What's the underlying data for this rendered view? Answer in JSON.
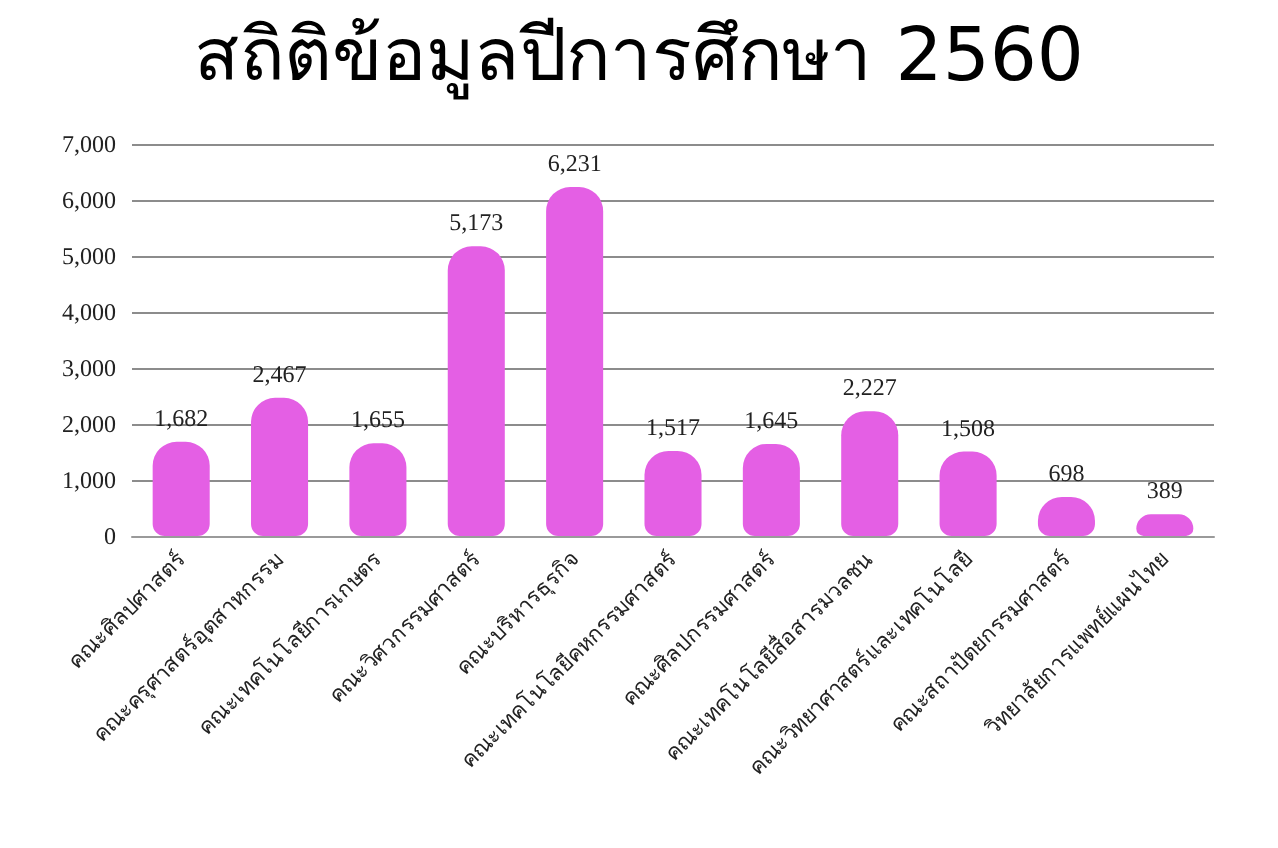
{
  "chart_data": {
    "type": "bar",
    "title": "สถิติข้อมูลปีการศึกษา 2560",
    "categories": [
      "คณะศิลปศาสตร์",
      "คณะครุศาสตร์อุตสาหกรรม",
      "คณะเทคโนโลยีการเกษตร",
      "คณะวิศวกรรมศาสตร์",
      "คณะบริหารธุรกิจ",
      "คณะเทคโนโลยีคหกรรมศาสตร์",
      "คณะศิลปกรรมศาสตร์",
      "คณะเทคโนโลยีสื่อสารมวลชน",
      "คณะวิทยาศาสตร์และเทคโนโลยี",
      "คณะสถาปัตยกรรมศาสตร์",
      "วิทยาลัยการแพทย์แผนไทย"
    ],
    "values": [
      1682,
      2467,
      1655,
      5173,
      6231,
      1517,
      1645,
      2227,
      1508,
      698,
      389
    ],
    "value_labels": [
      "1,682",
      "2,467",
      "1,655",
      "5,173",
      "6,231",
      "1,517",
      "1,645",
      "2,227",
      "1,508",
      "698",
      "389"
    ],
    "color": "#e45fe4",
    "ylim": [
      0,
      7000
    ],
    "yticks": [
      0,
      {
        "value": 1000,
        "label": "1,000"
      },
      {
        "value": 2000,
        "label": "2,000"
      },
      {
        "value": 3000,
        "label": "3,000"
      },
      {
        "value": 4000,
        "label": "4,000"
      },
      {
        "value": 5000,
        "label": "5,000"
      },
      {
        "value": 6000,
        "label": "6,000"
      },
      {
        "value": 7000,
        "label": "7,000"
      }
    ],
    "grid": "y"
  }
}
